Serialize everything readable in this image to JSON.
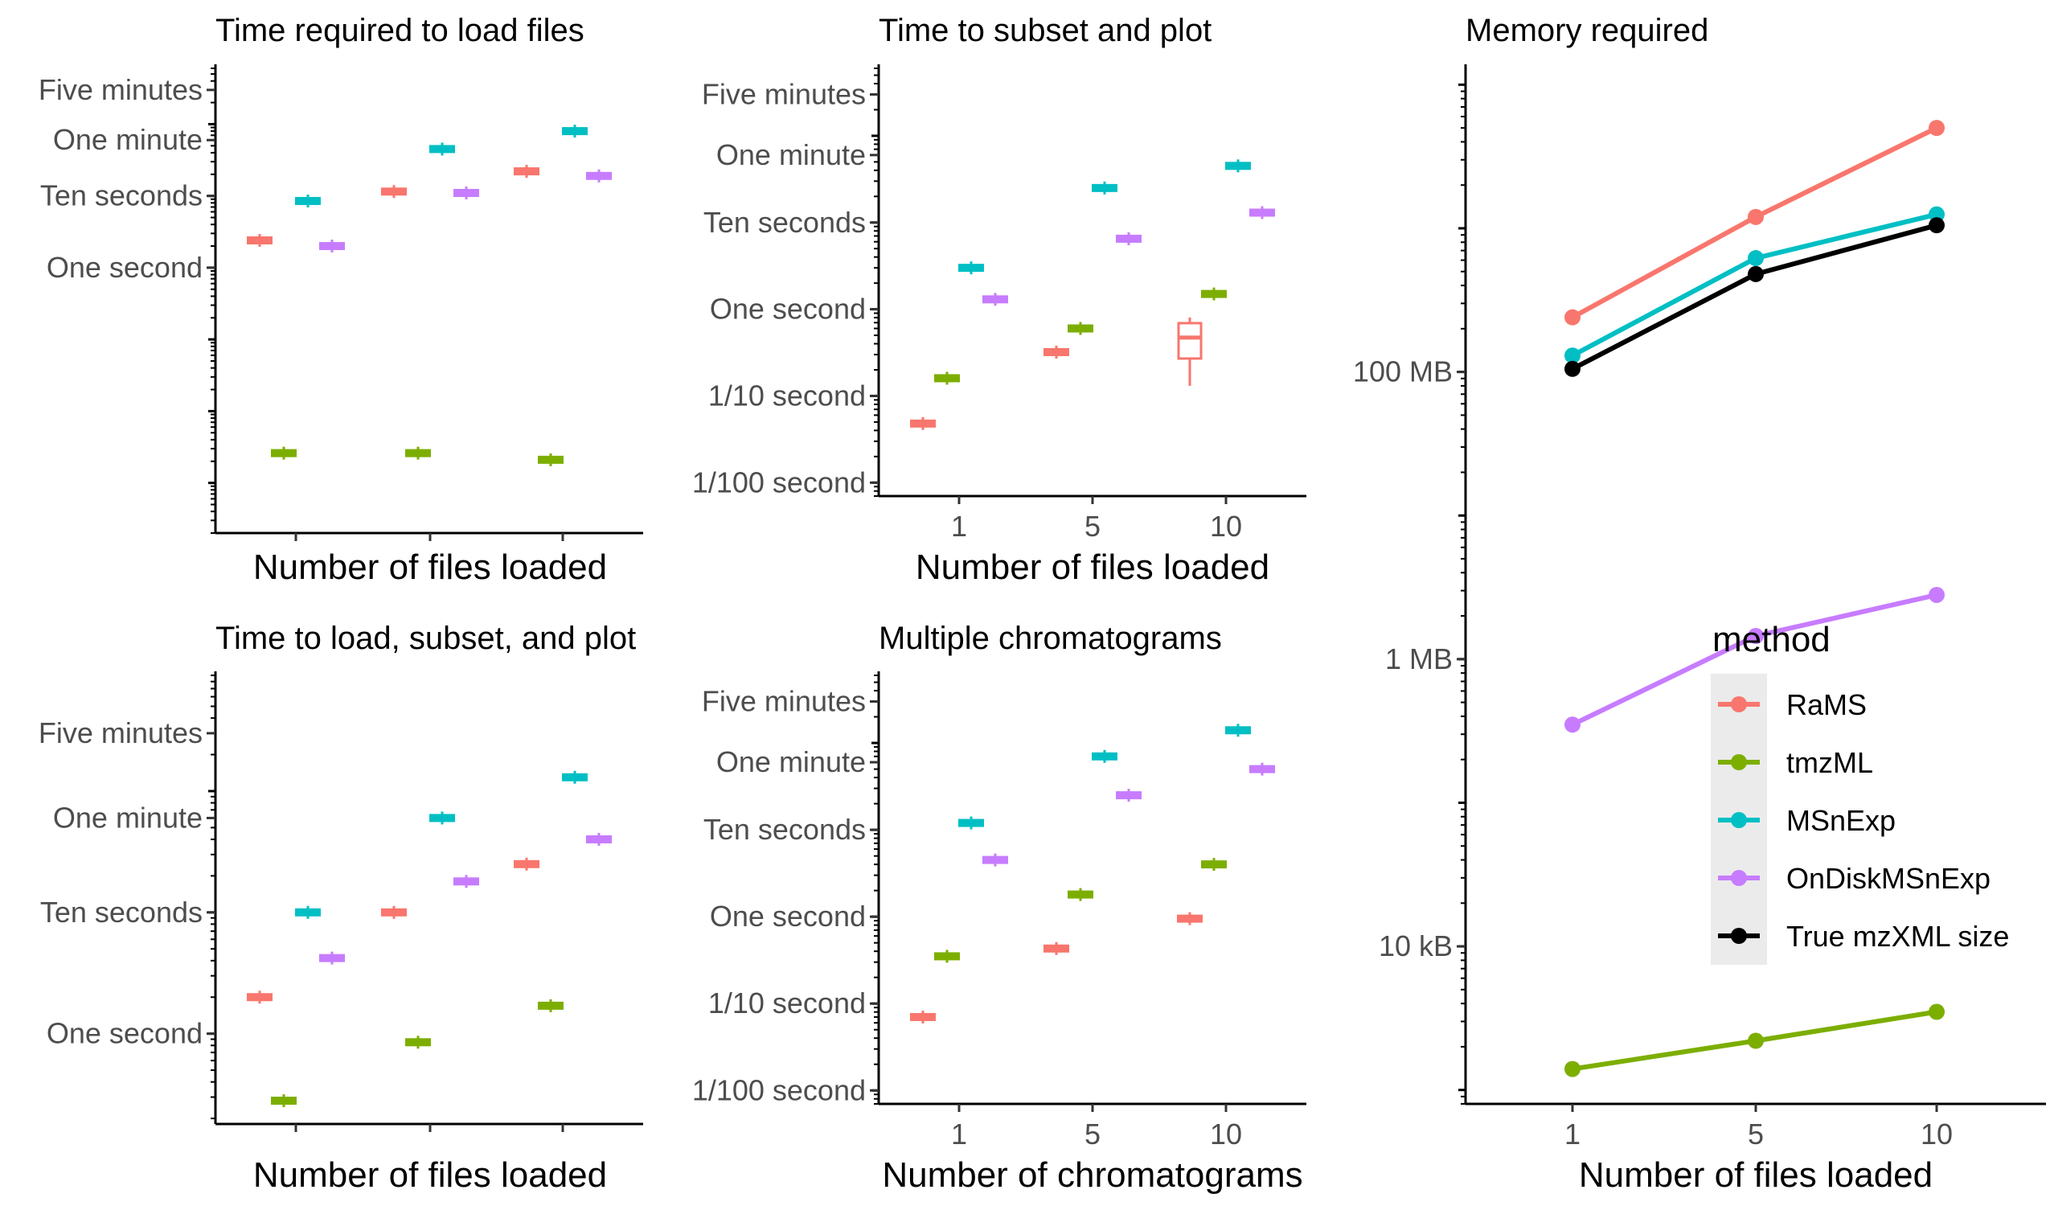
{
  "colors": {
    "RaMS": "#F8766D",
    "tmzML": "#7CAE00",
    "MSnExp": "#00BFC4",
    "OnDiskMSnExp": "#C77CFF",
    "True mzXML size": "#000000"
  },
  "legend": {
    "title": "method",
    "placement": "right-center",
    "entries": [
      "RaMS",
      "tmzML",
      "MSnExp",
      "OnDiskMSnExp",
      "True mzXML size"
    ]
  },
  "chart_data": [
    {
      "id": "load",
      "type": "box",
      "title": "Time required to load files",
      "xlabel": "Number of files loaded",
      "ylabel": "",
      "y_scale": "log",
      "y_unit": "seconds",
      "ylim": [
        0.0002,
        600
      ],
      "y_ticks": [
        {
          "label": "Five minutes",
          "value": 300
        },
        {
          "label": "One minute",
          "value": 60
        },
        {
          "label": "Ten seconds",
          "value": 10
        },
        {
          "label": "One second",
          "value": 1
        }
      ],
      "categories": [
        "1",
        "5",
        "10"
      ],
      "show_x_tick_labels": false,
      "series": [
        {
          "name": "RaMS",
          "values": [
            2.4,
            11.5,
            22
          ]
        },
        {
          "name": "tmzML",
          "values": [
            0.0026,
            0.0026,
            0.0021
          ]
        },
        {
          "name": "MSnExp",
          "values": [
            8.5,
            45,
            80
          ]
        },
        {
          "name": "OnDiskMSnExp",
          "values": [
            2.0,
            11,
            19
          ]
        }
      ]
    },
    {
      "id": "subset",
      "type": "box",
      "title": "Time to subset and plot",
      "xlabel": "Number of files loaded",
      "ylabel": "",
      "y_scale": "log",
      "y_unit": "seconds",
      "ylim": [
        0.007,
        600
      ],
      "y_ticks": [
        {
          "label": "Five minutes",
          "value": 300
        },
        {
          "label": "One minute",
          "value": 60
        },
        {
          "label": "Ten seconds",
          "value": 10
        },
        {
          "label": "One second",
          "value": 1
        },
        {
          "label": "1/10 second",
          "value": 0.1
        },
        {
          "label": "1/100 second",
          "value": 0.01
        }
      ],
      "categories": [
        "1",
        "5",
        "10"
      ],
      "show_x_tick_labels": true,
      "series": [
        {
          "name": "RaMS",
          "values": [
            0.048,
            0.32,
            0.38
          ]
        },
        {
          "name": "tmzML",
          "values": [
            0.16,
            0.6,
            1.5
          ]
        },
        {
          "name": "MSnExp",
          "values": [
            3.0,
            25,
            45
          ]
        },
        {
          "name": "OnDiskMSnExp",
          "values": [
            1.3,
            6.5,
            13
          ]
        }
      ]
    },
    {
      "id": "loadsubset",
      "type": "box",
      "title": "Time to load, subset, and plot",
      "xlabel": "Number of files loaded",
      "ylabel": "",
      "y_scale": "log",
      "y_unit": "seconds",
      "ylim": [
        0.18,
        900
      ],
      "y_ticks": [
        {
          "label": "Five minutes",
          "value": 300
        },
        {
          "label": "One minute",
          "value": 60
        },
        {
          "label": "Ten seconds",
          "value": 10
        },
        {
          "label": "One second",
          "value": 1
        }
      ],
      "categories": [
        "1",
        "5",
        "10"
      ],
      "show_x_tick_labels": false,
      "series": [
        {
          "name": "RaMS",
          "values": [
            2.0,
            10,
            25
          ]
        },
        {
          "name": "tmzML",
          "values": [
            0.28,
            0.85,
            1.7
          ]
        },
        {
          "name": "MSnExp",
          "values": [
            10,
            60,
            130
          ]
        },
        {
          "name": "OnDiskMSnExp",
          "values": [
            4.2,
            18,
            40
          ]
        }
      ]
    },
    {
      "id": "chrom",
      "type": "box",
      "title": "Multiple chromatograms",
      "xlabel": "Number of chromatograms",
      "ylabel": "",
      "y_scale": "log",
      "y_unit": "seconds",
      "ylim": [
        0.007,
        600
      ],
      "y_ticks": [
        {
          "label": "Five minutes",
          "value": 300
        },
        {
          "label": "One minute",
          "value": 60
        },
        {
          "label": "Ten seconds",
          "value": 10
        },
        {
          "label": "One second",
          "value": 1
        },
        {
          "label": "1/10 second",
          "value": 0.1
        },
        {
          "label": "1/100 second",
          "value": 0.01
        }
      ],
      "categories": [
        "1",
        "5",
        "10"
      ],
      "show_x_tick_labels": true,
      "series": [
        {
          "name": "RaMS",
          "values": [
            0.07,
            0.43,
            0.95
          ]
        },
        {
          "name": "tmzML",
          "values": [
            0.35,
            1.8,
            4.0
          ]
        },
        {
          "name": "MSnExp",
          "values": [
            12,
            70,
            140
          ]
        },
        {
          "name": "OnDiskMSnExp",
          "values": [
            4.5,
            25,
            50
          ]
        }
      ]
    },
    {
      "id": "memory",
      "type": "line",
      "title": "Memory required",
      "xlabel": "Number of files loaded",
      "ylabel": "",
      "y_scale": "log",
      "y_unit": "bytes",
      "ylim": [
        800,
        13000000000.0
      ],
      "y_ticks": [
        {
          "label": "100 MB",
          "value": 100000000
        },
        {
          "label": "1 MB",
          "value": 1000000
        },
        {
          "label": "10 kB",
          "value": 10000
        }
      ],
      "categories": [
        "1",
        "5",
        "10"
      ],
      "show_x_tick_labels": true,
      "series": [
        {
          "name": "RaMS",
          "values": [
            240000000,
            1200000000,
            5000000000
          ]
        },
        {
          "name": "tmzML",
          "values": [
            1400,
            2200,
            3500
          ]
        },
        {
          "name": "MSnExp",
          "values": [
            130000000,
            620000000,
            1250000000
          ]
        },
        {
          "name": "OnDiskMSnExp",
          "values": [
            350000,
            1450000,
            2800000
          ]
        },
        {
          "name": "True mzXML size",
          "values": [
            105000000,
            480000000,
            1050000000
          ]
        }
      ]
    }
  ]
}
